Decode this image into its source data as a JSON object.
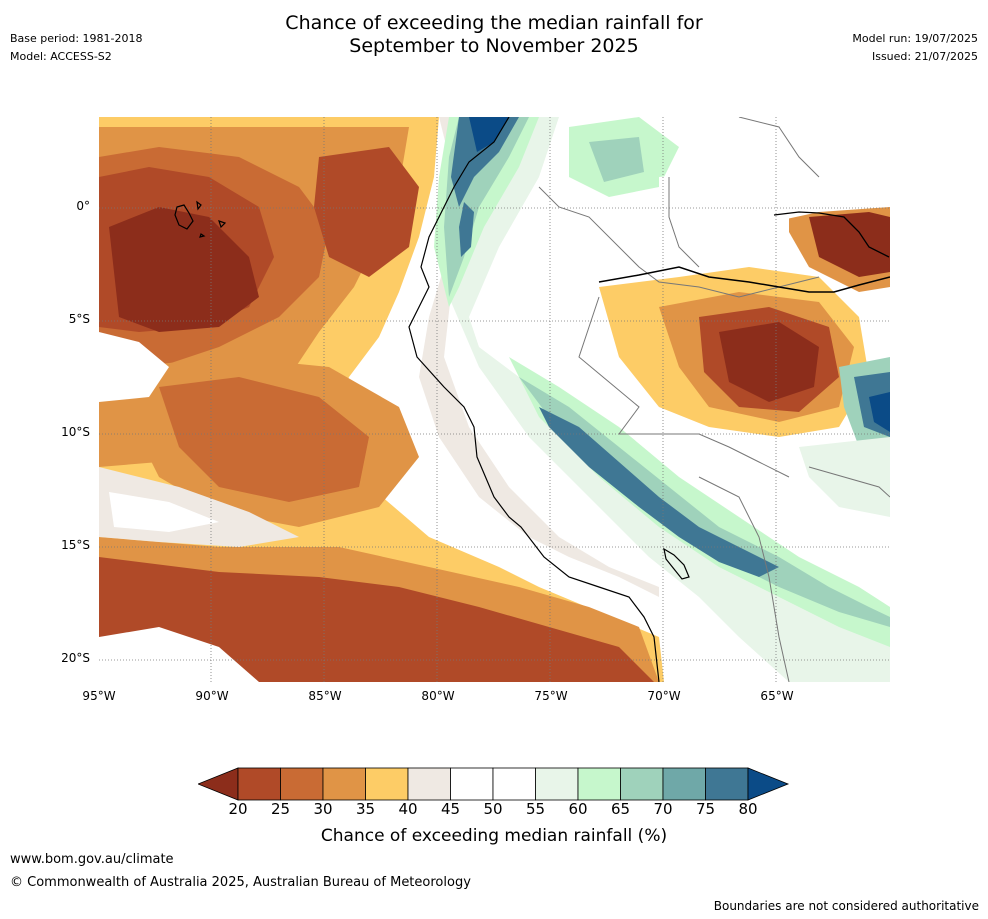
{
  "header": {
    "base_period": "Base period: 1981-2018",
    "model": "Model: ACCESS-S2",
    "title_line1": "Chance of exceeding the median rainfall for",
    "title_line2": "September to November 2025",
    "model_run": "Model run: 19/07/2025",
    "issued": "Issued: 21/07/2025"
  },
  "map": {
    "lat_labels": [
      "0°",
      "5°S",
      "10°S",
      "15°S",
      "20°S"
    ],
    "lon_labels": [
      "95°W",
      "90°W",
      "85°W",
      "80°W",
      "75°W",
      "70°W",
      "65°W"
    ]
  },
  "legend": {
    "ticks": [
      "20",
      "25",
      "30",
      "35",
      "40",
      "45",
      "50",
      "55",
      "60",
      "65",
      "70",
      "75",
      "80"
    ],
    "colors": [
      "#8c2d1b",
      "#b04a28",
      "#c96b34",
      "#e09446",
      "#fdcc66",
      "#efe9e3",
      "#ffffff",
      "#ffffff",
      "#e8f5e9",
      "#c6f7cc",
      "#9fd2bb",
      "#6fa8a8",
      "#3f7794",
      "#0b4b87"
    ],
    "label": "Chance of exceeding median rainfall (%)"
  },
  "footer": {
    "url": "www.bom.gov.au/climate",
    "copyright": "© Commonwealth of Australia 2025, Australian Bureau of Meteorology",
    "note": "Boundaries are not considered authoritative"
  }
}
